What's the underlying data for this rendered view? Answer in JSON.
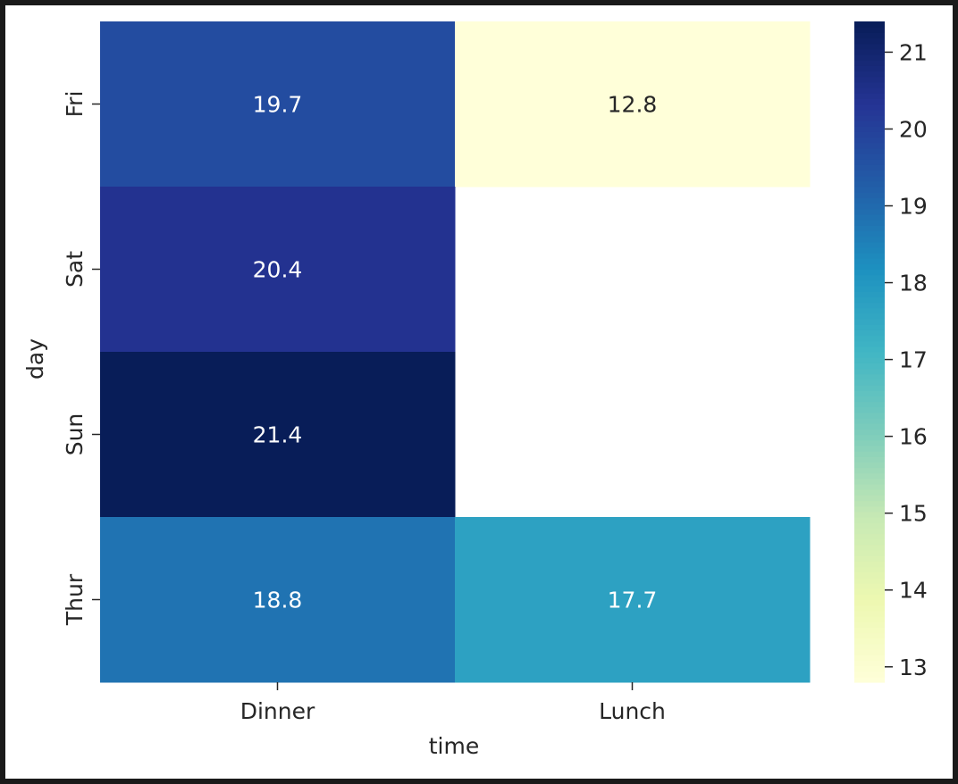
{
  "chart_data": {
    "type": "heatmap",
    "xlabel": "time",
    "ylabel": "day",
    "x_categories": [
      "Dinner",
      "Lunch"
    ],
    "y_categories": [
      "Fri",
      "Sat",
      "Sun",
      "Thur"
    ],
    "values": [
      [
        19.7,
        12.8
      ],
      [
        20.4,
        null
      ],
      [
        21.4,
        null
      ],
      [
        18.8,
        17.7
      ]
    ],
    "colorscale": "YlGnBu",
    "colorbar": {
      "vmin": 12.8,
      "vmax": 21.4,
      "ticks": [
        13,
        14,
        15,
        16,
        17,
        18,
        19,
        20,
        21
      ]
    },
    "grid": false
  }
}
